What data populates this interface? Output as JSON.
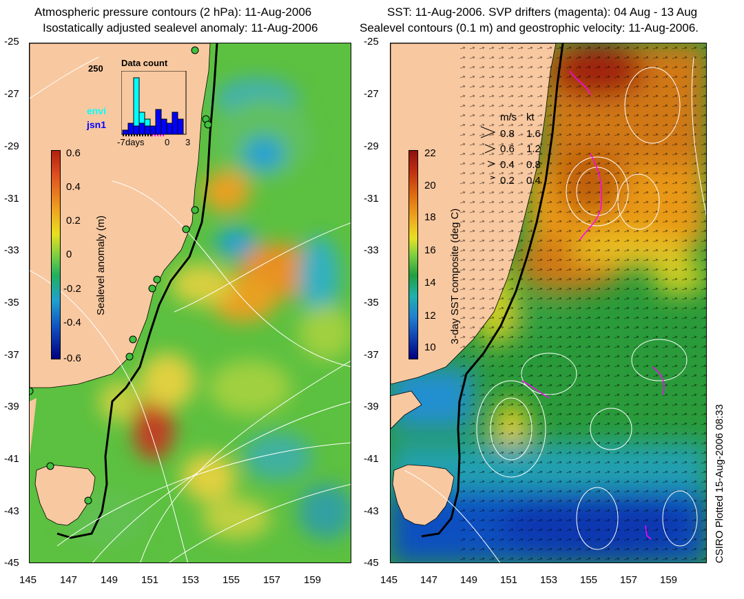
{
  "left": {
    "title_line1": "Atmospheric pressure contours (2 hPa): 11-Aug-2006",
    "title_line2": "Isostatically adjusted sealevel anomaly: 11-Aug-2006",
    "colorbar": {
      "title": "Sealevel anomaly (m)",
      "labels": [
        "0.6",
        "0.4",
        "0.2",
        "0",
        "-0.2",
        "-0.4",
        "-0.6"
      ]
    },
    "inset": {
      "title": "Data count",
      "ymax_label": "250",
      "series": [
        {
          "name": "envi",
          "color": "#00ffff"
        },
        {
          "name": "jsn1",
          "color": "#0000ff"
        }
      ],
      "xlabel": "days",
      "xticks": [
        "-7",
        "0",
        "3"
      ]
    }
  },
  "right": {
    "title_line1": "SST: 11-Aug-2006. SVP drifters (magenta): 04 Aug - 13 Aug",
    "title_line2": "Sealevel contours (0.1 m) and geostrophic velocity: 11-Aug-2006.",
    "colorbar": {
      "title": "3-day SST composite (deg C)",
      "labels": [
        "22",
        "20",
        "18",
        "16",
        "14",
        "12",
        "10"
      ]
    },
    "velocity_legend": {
      "headers": [
        "m/s",
        "kt"
      ],
      "rows": [
        {
          "ms": "0.8",
          "kt": "1.6"
        },
        {
          "ms": "0.6",
          "kt": "1.2"
        },
        {
          "ms": "0.4",
          "kt": "0.8"
        },
        {
          "ms": "0.2",
          "kt": "0.4"
        }
      ]
    }
  },
  "axes": {
    "lat_labels": [
      "-25",
      "-27",
      "-29",
      "-31",
      "-33",
      "-35",
      "-37",
      "-39",
      "-41",
      "-43",
      "-45"
    ],
    "lon_labels": [
      "145",
      "147",
      "149",
      "151",
      "153",
      "155",
      "157",
      "159"
    ]
  },
  "footer": {
    "plotted": "CSIRO Plotted 15-Aug-2006 08:33"
  },
  "colors": {
    "land": "#f8c8a0",
    "magenta": "#ff00ff",
    "contour": "#ffffff"
  }
}
